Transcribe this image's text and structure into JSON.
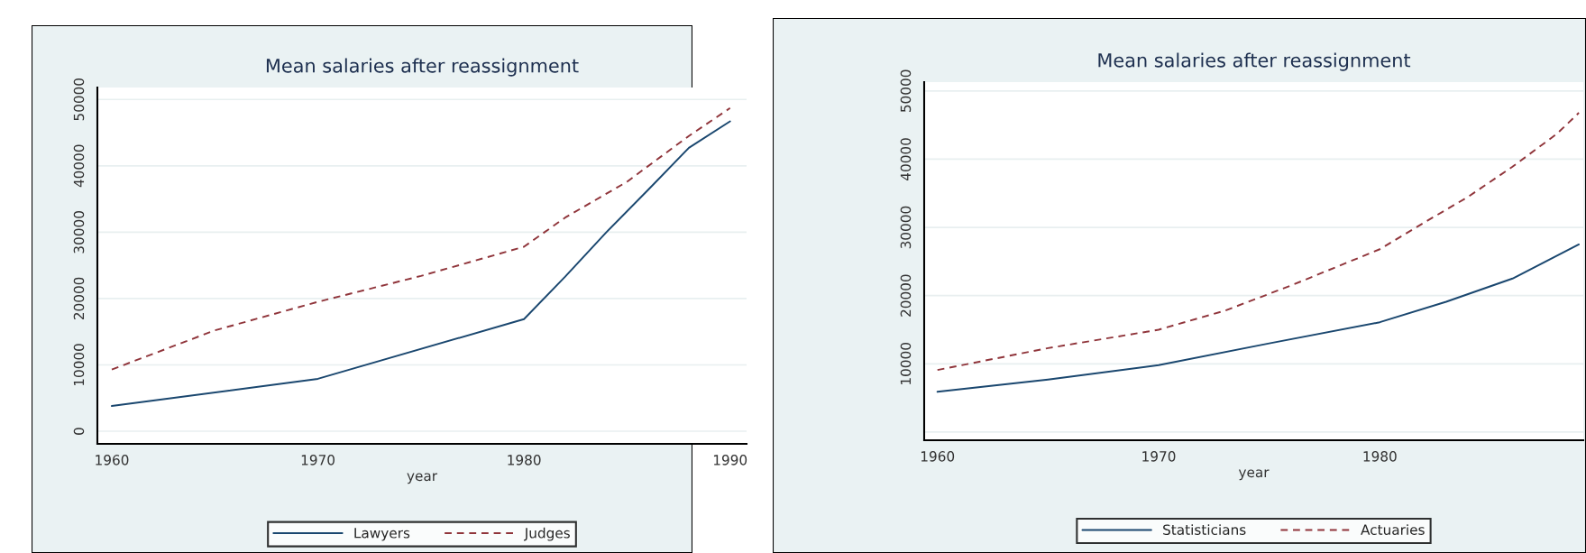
{
  "chart_data": [
    {
      "type": "line",
      "title": "Mean salaries after reassignment",
      "xlabel": "year",
      "xlim": [
        1959.3,
        1990.8
      ],
      "ylim": [
        -1900,
        51800
      ],
      "xticks": [
        1960,
        1970,
        1980,
        1990
      ],
      "yticks": [
        0,
        10000,
        20000,
        30000,
        40000,
        50000
      ],
      "grid": "y",
      "legend": "bottom",
      "series": [
        {
          "name": "Lawyers",
          "color": "#1a476f",
          "line_style": "solid",
          "x": [
            1960,
            1970,
            1980,
            1982,
            1984,
            1986,
            1988,
            1990
          ],
          "values": [
            3800,
            7900,
            16900,
            23300,
            30000,
            36300,
            42700,
            46700
          ]
        },
        {
          "name": "Judges",
          "color": "#90353b",
          "line_style": "dashed",
          "x": [
            1960,
            1965,
            1970,
            1975,
            1980,
            1982,
            1985,
            1988,
            1990
          ],
          "values": [
            9300,
            15200,
            19500,
            23400,
            27800,
            32200,
            37600,
            44500,
            48700
          ]
        }
      ]
    },
    {
      "type": "line",
      "title": "Mean salaries after reassignment",
      "xlabel": "year",
      "xlim": [
        1959.4,
        1989.2
      ],
      "ylim": [
        -1200,
        51300
      ],
      "xticks": [
        1960,
        1970,
        1980
      ],
      "yticks": [
        {
          "value": 0,
          "label": null
        },
        10000,
        20000,
        30000,
        40000,
        50000
      ],
      "grid": "y",
      "legend": "bottom",
      "series": [
        {
          "name": "Statisticians",
          "color": "#1a476f",
          "line_style": "solid",
          "x": [
            1960,
            1965,
            1970,
            1975,
            1980,
            1983,
            1986,
            1989
          ],
          "values": [
            5900,
            7700,
            9800,
            13000,
            16100,
            19100,
            22500,
            27500
          ]
        },
        {
          "name": "Actuaries",
          "color": "#90353b",
          "line_style": "dashed",
          "x": [
            1960,
            1965,
            1970,
            1973,
            1976,
            1980,
            1982,
            1984,
            1986,
            1988,
            1989
          ],
          "values": [
            9100,
            12300,
            15000,
            17800,
            21500,
            26800,
            30700,
            34500,
            38900,
            43700,
            46800
          ]
        }
      ]
    }
  ]
}
